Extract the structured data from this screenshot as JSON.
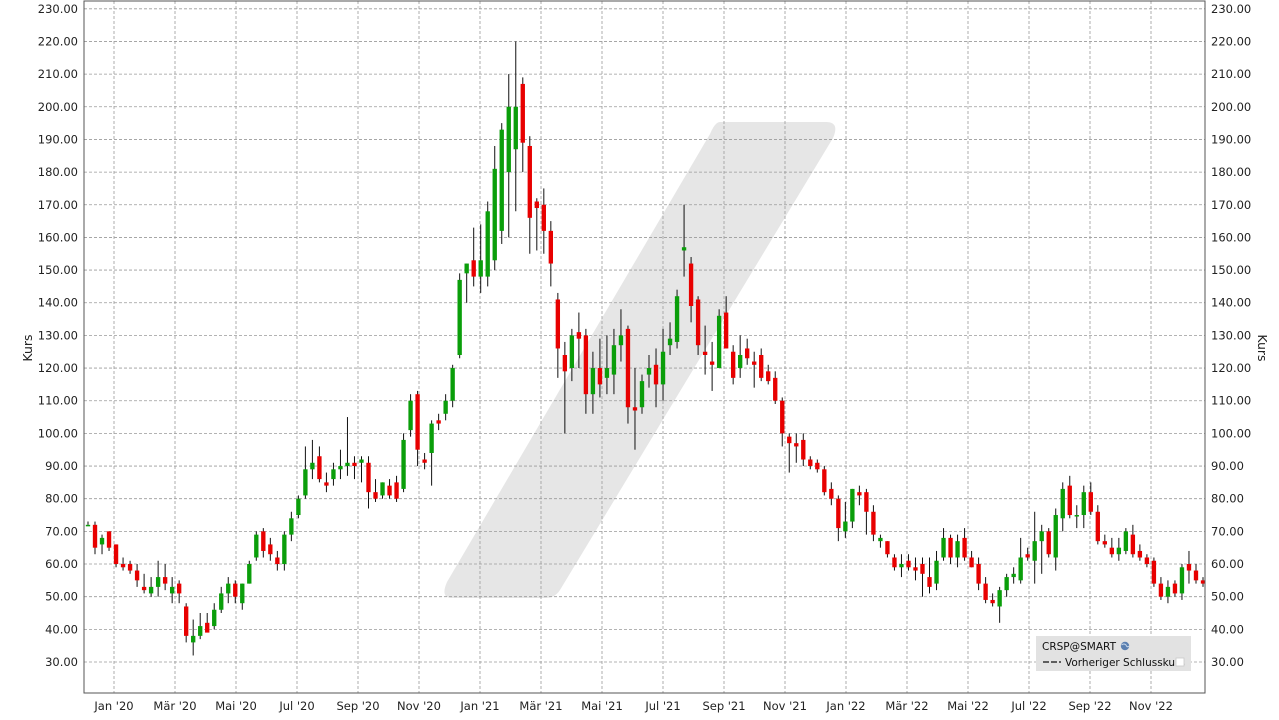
{
  "chart_data": {
    "type": "candlestick",
    "ylabel_left": "Kurs",
    "ylabel_right": "Kurs",
    "ylim": [
      20,
      232
    ],
    "yticks": [
      30,
      40,
      50,
      60,
      70,
      80,
      90,
      100,
      110,
      120,
      130,
      140,
      150,
      160,
      170,
      180,
      190,
      200,
      210,
      220,
      230
    ],
    "grid": true,
    "xticks": [
      "Jan '20",
      "Mär '20",
      "Mai '20",
      "Jul '20",
      "Sep '20",
      "Nov '20",
      "Jan '21",
      "Mär '21",
      "Mai '21",
      "Jul '21",
      "Sep '21",
      "Nov '21",
      "Jan '22",
      "Mär '22",
      "Mai '22",
      "Jul '22",
      "Sep '22",
      "Nov '22"
    ],
    "legend": {
      "position": "bottom-right",
      "symbol": "CRSP@SMART",
      "entries": [
        "Vorheriger Schlusskurs"
      ]
    },
    "colors": {
      "up": "#0a9e0a",
      "down": "#e80000",
      "grid": "#9a9a9a",
      "legend_bg": "#e2e2e2",
      "watermark": "#e6e6e6"
    },
    "candles": [
      {
        "o": 72,
        "h": 73,
        "l": 72,
        "c": 72
      },
      {
        "o": 72,
        "h": 73,
        "l": 63,
        "c": 65
      },
      {
        "o": 66,
        "h": 69,
        "l": 63,
        "c": 68
      },
      {
        "o": 70,
        "h": 70,
        "l": 64,
        "c": 65
      },
      {
        "o": 66,
        "h": 66,
        "l": 59,
        "c": 60
      },
      {
        "o": 60,
        "h": 62,
        "l": 58,
        "c": 59
      },
      {
        "o": 60,
        "h": 61,
        "l": 57,
        "c": 58
      },
      {
        "o": 58,
        "h": 60,
        "l": 53,
        "c": 55
      },
      {
        "o": 53,
        "h": 57,
        "l": 51,
        "c": 52
      },
      {
        "o": 51,
        "h": 56,
        "l": 50,
        "c": 53
      },
      {
        "o": 53,
        "h": 61,
        "l": 50,
        "c": 56
      },
      {
        "o": 56,
        "h": 60,
        "l": 52,
        "c": 54
      },
      {
        "o": 51,
        "h": 56,
        "l": 48,
        "c": 53
      },
      {
        "o": 54,
        "h": 55,
        "l": 48,
        "c": 51
      },
      {
        "o": 47,
        "h": 48,
        "l": 36,
        "c": 38
      },
      {
        "o": 36,
        "h": 43,
        "l": 32,
        "c": 38
      },
      {
        "o": 38,
        "h": 45,
        "l": 37,
        "c": 41
      },
      {
        "o": 42,
        "h": 45,
        "l": 40,
        "c": 39
      },
      {
        "o": 41,
        "h": 48,
        "l": 40,
        "c": 46
      },
      {
        "o": 46,
        "h": 53,
        "l": 45,
        "c": 51
      },
      {
        "o": 51,
        "h": 56,
        "l": 48,
        "c": 54
      },
      {
        "o": 54,
        "h": 55,
        "l": 48,
        "c": 50
      },
      {
        "o": 48,
        "h": 54,
        "l": 46,
        "c": 54
      },
      {
        "o": 54,
        "h": 61,
        "l": 54,
        "c": 60
      },
      {
        "o": 62,
        "h": 70,
        "l": 61,
        "c": 69
      },
      {
        "o": 70,
        "h": 71,
        "l": 62,
        "c": 64
      },
      {
        "o": 66,
        "h": 68,
        "l": 61,
        "c": 63
      },
      {
        "o": 62,
        "h": 64,
        "l": 58,
        "c": 60
      },
      {
        "o": 60,
        "h": 70,
        "l": 58,
        "c": 69
      },
      {
        "o": 69,
        "h": 76,
        "l": 67,
        "c": 74
      },
      {
        "o": 75,
        "h": 81,
        "l": 74,
        "c": 80
      },
      {
        "o": 81,
        "h": 96,
        "l": 80,
        "c": 89
      },
      {
        "o": 89,
        "h": 98,
        "l": 86,
        "c": 91
      },
      {
        "o": 93,
        "h": 96,
        "l": 85,
        "c": 86
      },
      {
        "o": 85,
        "h": 88,
        "l": 82,
        "c": 84
      },
      {
        "o": 86,
        "h": 91,
        "l": 84,
        "c": 89
      },
      {
        "o": 89,
        "h": 95,
        "l": 86,
        "c": 90
      },
      {
        "o": 90,
        "h": 105,
        "l": 87,
        "c": 91
      },
      {
        "o": 91,
        "h": 93,
        "l": 86,
        "c": 90
      },
      {
        "o": 91,
        "h": 93,
        "l": 85,
        "c": 92
      },
      {
        "o": 91,
        "h": 93,
        "l": 77,
        "c": 82
      },
      {
        "o": 82,
        "h": 86,
        "l": 79,
        "c": 80
      },
      {
        "o": 81,
        "h": 85,
        "l": 80,
        "c": 85
      },
      {
        "o": 84,
        "h": 86,
        "l": 80,
        "c": 81
      },
      {
        "o": 85,
        "h": 87,
        "l": 79,
        "c": 80
      },
      {
        "o": 83,
        "h": 100,
        "l": 82,
        "c": 98
      },
      {
        "o": 101,
        "h": 112,
        "l": 99,
        "c": 110
      },
      {
        "o": 112,
        "h": 113,
        "l": 90,
        "c": 95
      },
      {
        "o": 92,
        "h": 94,
        "l": 89,
        "c": 91
      },
      {
        "o": 94,
        "h": 104,
        "l": 84,
        "c": 103
      },
      {
        "o": 104,
        "h": 106,
        "l": 101,
        "c": 103
      },
      {
        "o": 106,
        "h": 112,
        "l": 104,
        "c": 110
      },
      {
        "o": 110,
        "h": 121,
        "l": 108,
        "c": 120
      },
      {
        "o": 124,
        "h": 149,
        "l": 123,
        "c": 147
      },
      {
        "o": 149,
        "h": 152,
        "l": 140,
        "c": 152
      },
      {
        "o": 153,
        "h": 163,
        "l": 145,
        "c": 148
      },
      {
        "o": 148,
        "h": 164,
        "l": 143,
        "c": 153
      },
      {
        "o": 148,
        "h": 171,
        "l": 145,
        "c": 168
      },
      {
        "o": 153,
        "h": 188,
        "l": 150,
        "c": 181
      },
      {
        "o": 162,
        "h": 195,
        "l": 158,
        "c": 193
      },
      {
        "o": 180,
        "h": 210,
        "l": 160,
        "c": 200
      },
      {
        "o": 187,
        "h": 220,
        "l": 168,
        "c": 200
      },
      {
        "o": 207,
        "h": 209,
        "l": 180,
        "c": 189
      },
      {
        "o": 188,
        "h": 191,
        "l": 155,
        "c": 166
      },
      {
        "o": 171,
        "h": 172,
        "l": 156,
        "c": 169
      },
      {
        "o": 170,
        "h": 175,
        "l": 155,
        "c": 162
      },
      {
        "o": 162,
        "h": 165,
        "l": 145,
        "c": 152
      },
      {
        "o": 141,
        "h": 143,
        "l": 117,
        "c": 126
      },
      {
        "o": 124,
        "h": 128,
        "l": 100,
        "c": 119
      },
      {
        "o": 120,
        "h": 132,
        "l": 116,
        "c": 130
      },
      {
        "o": 131,
        "h": 137,
        "l": 120,
        "c": 129
      },
      {
        "o": 130,
        "h": 132,
        "l": 106,
        "c": 112
      },
      {
        "o": 112,
        "h": 125,
        "l": 106,
        "c": 120
      },
      {
        "o": 120,
        "h": 129,
        "l": 111,
        "c": 115
      },
      {
        "o": 117,
        "h": 130,
        "l": 112,
        "c": 120
      },
      {
        "o": 118,
        "h": 132,
        "l": 112,
        "c": 127
      },
      {
        "o": 127,
        "h": 138,
        "l": 122,
        "c": 130
      },
      {
        "o": 132,
        "h": 133,
        "l": 103,
        "c": 108
      },
      {
        "o": 108,
        "h": 120,
        "l": 95,
        "c": 107
      },
      {
        "o": 108,
        "h": 118,
        "l": 106,
        "c": 116
      },
      {
        "o": 118,
        "h": 124,
        "l": 114,
        "c": 120
      },
      {
        "o": 121,
        "h": 126,
        "l": 108,
        "c": 115
      },
      {
        "o": 115,
        "h": 132,
        "l": 110,
        "c": 125
      },
      {
        "o": 127,
        "h": 134,
        "l": 124,
        "c": 129
      },
      {
        "o": 128,
        "h": 144,
        "l": 126,
        "c": 142
      },
      {
        "o": 156,
        "h": 170,
        "l": 148,
        "c": 157
      },
      {
        "o": 152,
        "h": 154,
        "l": 134,
        "c": 139
      },
      {
        "o": 141,
        "h": 142,
        "l": 124,
        "c": 127
      },
      {
        "o": 125,
        "h": 133,
        "l": 118,
        "c": 124
      },
      {
        "o": 122,
        "h": 128,
        "l": 113,
        "c": 121
      },
      {
        "o": 120,
        "h": 138,
        "l": 120,
        "c": 136
      },
      {
        "o": 137,
        "h": 142,
        "l": 126,
        "c": 126
      },
      {
        "o": 125,
        "h": 127,
        "l": 115,
        "c": 117
      },
      {
        "o": 120,
        "h": 130,
        "l": 117,
        "c": 124
      },
      {
        "o": 126,
        "h": 129,
        "l": 121,
        "c": 123
      },
      {
        "o": 122,
        "h": 125,
        "l": 114,
        "c": 121
      },
      {
        "o": 124,
        "h": 126,
        "l": 116,
        "c": 117
      },
      {
        "o": 119,
        "h": 121,
        "l": 115,
        "c": 116
      },
      {
        "o": 117,
        "h": 119,
        "l": 109,
        "c": 110
      },
      {
        "o": 110,
        "h": 111,
        "l": 96,
        "c": 100
      },
      {
        "o": 99,
        "h": 100,
        "l": 88,
        "c": 97
      },
      {
        "o": 97,
        "h": 100,
        "l": 91,
        "c": 96
      },
      {
        "o": 98,
        "h": 100,
        "l": 90,
        "c": 92
      },
      {
        "o": 92,
        "h": 93,
        "l": 89,
        "c": 90
      },
      {
        "o": 91,
        "h": 92,
        "l": 88,
        "c": 89
      },
      {
        "o": 89,
        "h": 90,
        "l": 81,
        "c": 82
      },
      {
        "o": 83,
        "h": 85,
        "l": 78,
        "c": 80
      },
      {
        "o": 80,
        "h": 81,
        "l": 67,
        "c": 71
      },
      {
        "o": 70,
        "h": 79,
        "l": 68,
        "c": 73
      },
      {
        "o": 73,
        "h": 83,
        "l": 71,
        "c": 83
      },
      {
        "o": 82,
        "h": 84,
        "l": 78,
        "c": 81
      },
      {
        "o": 82,
        "h": 83,
        "l": 69,
        "c": 76
      },
      {
        "o": 76,
        "h": 78,
        "l": 67,
        "c": 69
      },
      {
        "o": 67,
        "h": 69,
        "l": 65,
        "c": 68
      },
      {
        "o": 67,
        "h": 67,
        "l": 62,
        "c": 63
      },
      {
        "o": 62,
        "h": 63,
        "l": 58,
        "c": 59
      },
      {
        "o": 59,
        "h": 63,
        "l": 56,
        "c": 60
      },
      {
        "o": 61,
        "h": 63,
        "l": 58,
        "c": 59
      },
      {
        "o": 59,
        "h": 62,
        "l": 55,
        "c": 58
      },
      {
        "o": 60,
        "h": 62,
        "l": 50,
        "c": 57
      },
      {
        "o": 56,
        "h": 62,
        "l": 51,
        "c": 53
      },
      {
        "o": 54,
        "h": 64,
        "l": 52,
        "c": 61
      },
      {
        "o": 62,
        "h": 71,
        "l": 61,
        "c": 68
      },
      {
        "o": 68,
        "h": 69,
        "l": 60,
        "c": 62
      },
      {
        "o": 62,
        "h": 69,
        "l": 59,
        "c": 67
      },
      {
        "o": 68,
        "h": 71,
        "l": 61,
        "c": 62
      },
      {
        "o": 62,
        "h": 64,
        "l": 59,
        "c": 59
      },
      {
        "o": 60,
        "h": 62,
        "l": 52,
        "c": 54
      },
      {
        "o": 54,
        "h": 56,
        "l": 48,
        "c": 49
      },
      {
        "o": 49,
        "h": 51,
        "l": 47,
        "c": 48
      },
      {
        "o": 47,
        "h": 53,
        "l": 42,
        "c": 52
      },
      {
        "o": 52,
        "h": 57,
        "l": 50,
        "c": 56
      },
      {
        "o": 56,
        "h": 59,
        "l": 54,
        "c": 57
      },
      {
        "o": 55,
        "h": 68,
        "l": 54,
        "c": 62
      },
      {
        "o": 63,
        "h": 65,
        "l": 61,
        "c": 62
      },
      {
        "o": 61,
        "h": 76,
        "l": 54,
        "c": 67
      },
      {
        "o": 67,
        "h": 72,
        "l": 57,
        "c": 70
      },
      {
        "o": 70,
        "h": 71,
        "l": 62,
        "c": 63
      },
      {
        "o": 62,
        "h": 77,
        "l": 58,
        "c": 75
      },
      {
        "o": 74,
        "h": 85,
        "l": 70,
        "c": 83
      },
      {
        "o": 84,
        "h": 87,
        "l": 74,
        "c": 75
      },
      {
        "o": 75,
        "h": 78,
        "l": 71,
        "c": 75
      },
      {
        "o": 75,
        "h": 84,
        "l": 71,
        "c": 82
      },
      {
        "o": 82,
        "h": 85,
        "l": 75,
        "c": 76
      },
      {
        "o": 76,
        "h": 78,
        "l": 66,
        "c": 67
      },
      {
        "o": 67,
        "h": 69,
        "l": 65,
        "c": 66
      },
      {
        "o": 65,
        "h": 68,
        "l": 62,
        "c": 63
      },
      {
        "o": 63,
        "h": 68,
        "l": 61,
        "c": 65
      },
      {
        "o": 64,
        "h": 71,
        "l": 63,
        "c": 70
      },
      {
        "o": 69,
        "h": 72,
        "l": 62,
        "c": 63
      },
      {
        "o": 64,
        "h": 66,
        "l": 61,
        "c": 62
      },
      {
        "o": 62,
        "h": 63,
        "l": 59,
        "c": 60
      },
      {
        "o": 61,
        "h": 62,
        "l": 53,
        "c": 54
      },
      {
        "o": 54,
        "h": 56,
        "l": 49,
        "c": 50
      },
      {
        "o": 50,
        "h": 55,
        "l": 48,
        "c": 53
      },
      {
        "o": 54,
        "h": 55,
        "l": 50,
        "c": 51
      },
      {
        "o": 51,
        "h": 60,
        "l": 49,
        "c": 59
      },
      {
        "o": 60,
        "h": 64,
        "l": 54,
        "c": 58
      },
      {
        "o": 58,
        "h": 60,
        "l": 54,
        "c": 55
      },
      {
        "o": 55,
        "h": 56,
        "l": 53,
        "c": 54
      }
    ]
  }
}
